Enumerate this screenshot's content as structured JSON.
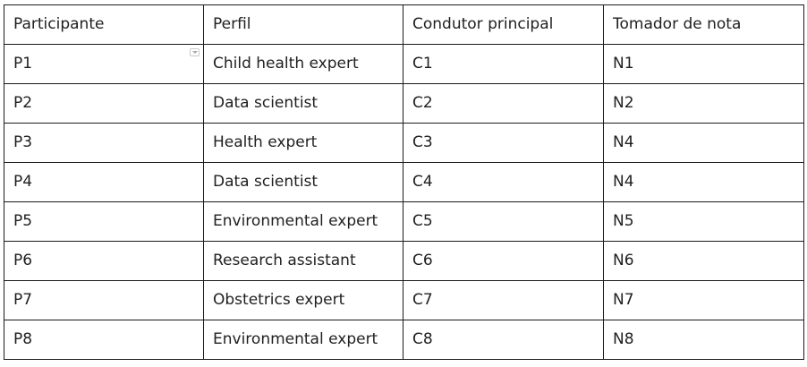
{
  "table": {
    "headers": [
      "Participante",
      "Perfil",
      "Condutor principal",
      "Tomador de nota"
    ],
    "rows": [
      [
        "P1",
        "Child health expert",
        "C1",
        "N1"
      ],
      [
        "P2",
        "Data scientist",
        "C2",
        "N2"
      ],
      [
        "P3",
        "Health expert",
        "C3",
        "N4"
      ],
      [
        "P4",
        "Data scientist",
        "C4",
        "N4"
      ],
      [
        "P5",
        "Environmental expert",
        "C5",
        "N5"
      ],
      [
        "P6",
        "Research assistant",
        "C6",
        "N6"
      ],
      [
        "P7",
        "Obstetrics expert",
        "C7",
        "N7"
      ],
      [
        "P8",
        "Environmental expert",
        "C8",
        "N8"
      ]
    ]
  },
  "icons": {
    "filter_dropdown": "chevron-down-icon"
  },
  "colors": {
    "border": "#1a1a1a",
    "text": "#1f1f1f",
    "background": "#ffffff"
  }
}
